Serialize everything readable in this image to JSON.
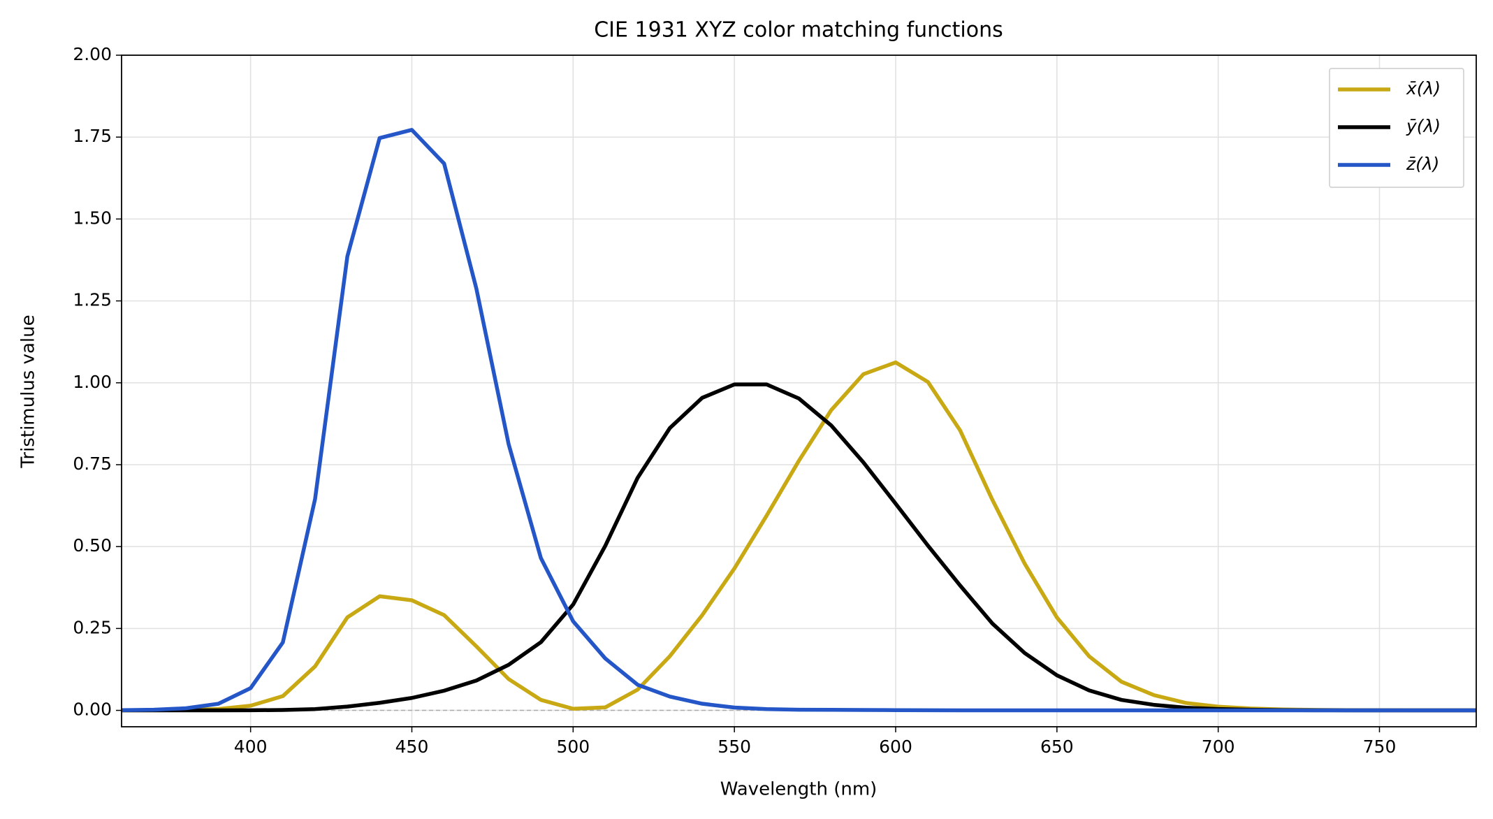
{
  "chart_data": {
    "type": "line",
    "title": "CIE 1931 XYZ color matching functions",
    "x_label": "Wavelength (nm)",
    "y_label": "Tristimulus value",
    "x": [
      360,
      370,
      380,
      390,
      400,
      410,
      420,
      430,
      440,
      450,
      460,
      470,
      480,
      490,
      500,
      510,
      520,
      530,
      540,
      550,
      560,
      570,
      580,
      590,
      600,
      610,
      620,
      630,
      640,
      650,
      660,
      670,
      680,
      690,
      700,
      710,
      720,
      730,
      740,
      750,
      760,
      770,
      780
    ],
    "series": [
      {
        "name": "x̄(λ)",
        "color": "#c8a914",
        "values": [
          0.0001,
          0.0004,
          0.0014,
          0.0042,
          0.0143,
          0.0435,
          0.1344,
          0.2839,
          0.3483,
          0.3362,
          0.2908,
          0.1954,
          0.0956,
          0.032,
          0.0049,
          0.0093,
          0.0633,
          0.1655,
          0.2904,
          0.4334,
          0.5945,
          0.7621,
          0.9163,
          1.0263,
          1.0622,
          1.0026,
          0.8544,
          0.6424,
          0.4479,
          0.2835,
          0.1649,
          0.0874,
          0.0468,
          0.0227,
          0.0114,
          0.0058,
          0.0029,
          0.0014,
          0.0007,
          0.0003,
          0.0002,
          0.0001,
          0
        ]
      },
      {
        "name": "ȳ(λ)",
        "color": "#000000",
        "values": [
          0,
          0,
          0,
          0.0001,
          0.0004,
          0.0012,
          0.004,
          0.0116,
          0.023,
          0.038,
          0.06,
          0.091,
          0.139,
          0.208,
          0.323,
          0.503,
          0.71,
          0.862,
          0.954,
          0.995,
          0.995,
          0.952,
          0.87,
          0.757,
          0.631,
          0.503,
          0.381,
          0.265,
          0.175,
          0.107,
          0.061,
          0.032,
          0.017,
          0.0082,
          0.0041,
          0.0021,
          0.001,
          0.0005,
          0.0002,
          0.0001,
          0.0001,
          0,
          0
        ]
      },
      {
        "name": "z̄(λ)",
        "color": "#2456c8",
        "values": [
          0.0006,
          0.002,
          0.0065,
          0.0201,
          0.0679,
          0.2074,
          0.6456,
          1.3856,
          1.7471,
          1.7721,
          1.6692,
          1.2876,
          0.813,
          0.4652,
          0.272,
          0.1582,
          0.0782,
          0.0422,
          0.0203,
          0.0087,
          0.0039,
          0.0021,
          0.0017,
          0.0011,
          0.0008,
          0.0003,
          0.0002,
          0,
          0,
          0,
          0,
          0,
          0,
          0,
          0,
          0,
          0,
          0,
          0,
          0,
          0,
          0,
          0
        ]
      }
    ],
    "xlim": [
      360,
      780
    ],
    "ylim": [
      -0.05,
      2.0
    ],
    "xticks": [
      400,
      450,
      500,
      550,
      600,
      650,
      700,
      750
    ],
    "yticks": [
      {
        "value": 0,
        "label": "0.00"
      },
      {
        "value": 0.25,
        "label": "0.25"
      },
      {
        "value": 0.5,
        "label": "0.50"
      },
      {
        "value": 0.75,
        "label": "0.75"
      },
      {
        "value": 1,
        "label": "1.00"
      },
      {
        "value": 1.25,
        "label": "1.25"
      },
      {
        "value": 1.5,
        "label": "1.50"
      },
      {
        "value": 1.75,
        "label": "1.75"
      },
      {
        "value": 2,
        "label": "2.00"
      }
    ],
    "grid": true,
    "zero_line": true,
    "legend": "upper right"
  }
}
